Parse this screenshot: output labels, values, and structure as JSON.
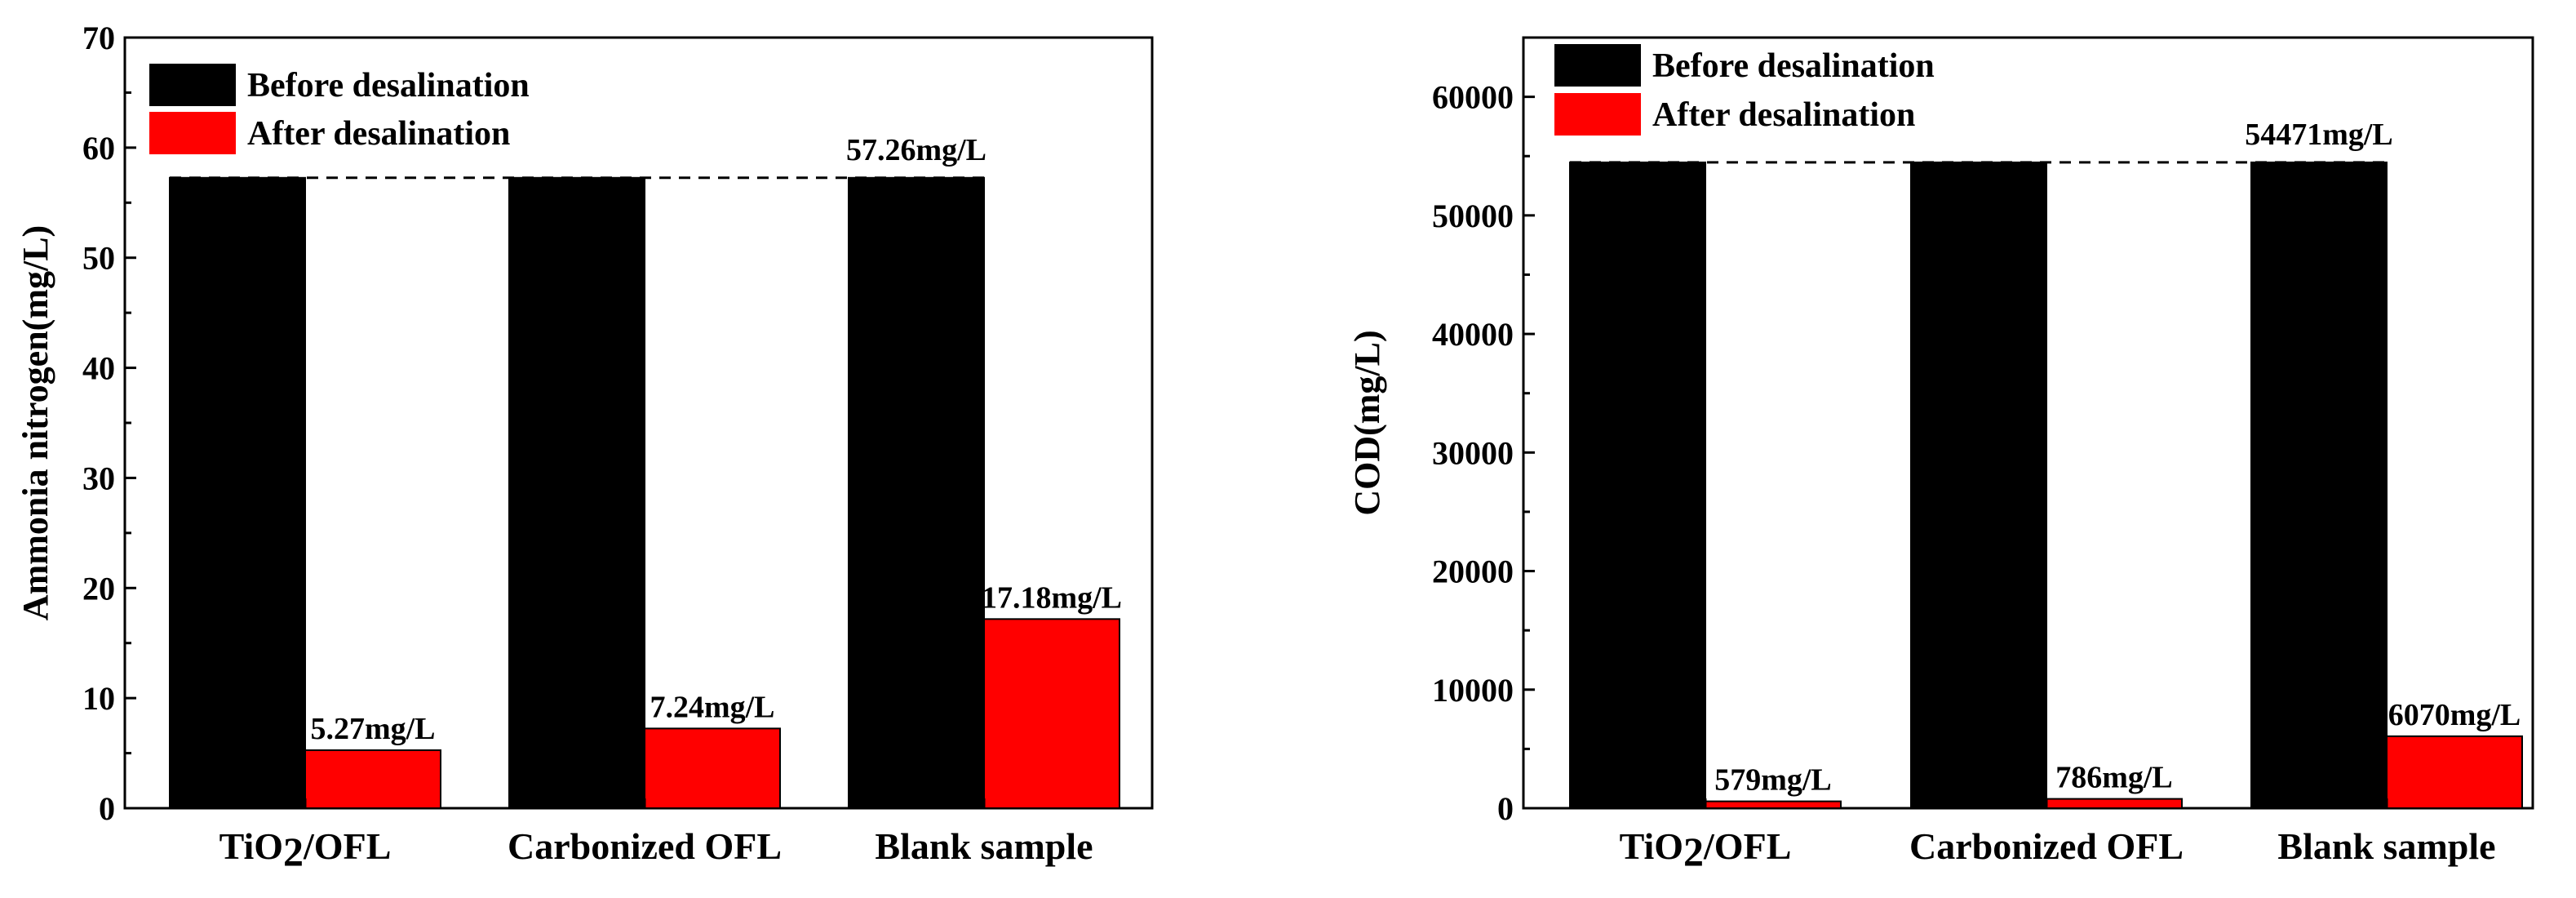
{
  "chart_data": [
    {
      "type": "bar",
      "title": "",
      "xlabel": "",
      "ylabel": "Ammonia nitrogen(mg/L)",
      "ylim": [
        0,
        70
      ],
      "yticks": [
        0,
        10,
        20,
        30,
        40,
        50,
        60,
        70
      ],
      "categories": [
        "TiO2/OFL",
        "Carbonized OFL",
        "Blank sample"
      ],
      "series": [
        {
          "name": "Before desalination",
          "color": "#000000",
          "values": [
            57.26,
            57.26,
            57.26
          ]
        },
        {
          "name": "After desalination",
          "color": "#ff0000",
          "values": [
            5.27,
            7.24,
            17.18
          ]
        }
      ],
      "legend_position": "top-left",
      "reference_line": {
        "value": 57.26,
        "style": "dashed"
      },
      "annotations": [
        "57.26mg/L",
        "5.27mg/L",
        "7.24mg/L",
        "17.18mg/L"
      ]
    },
    {
      "type": "bar",
      "title": "",
      "xlabel": "",
      "ylabel": "COD(mg/L)",
      "ylim": [
        0,
        65000
      ],
      "yticks": [
        0,
        10000,
        20000,
        30000,
        40000,
        50000,
        60000
      ],
      "categories": [
        "TiO2/OFL",
        "Carbonized OFL",
        "Blank sample"
      ],
      "series": [
        {
          "name": "Before desalination",
          "color": "#000000",
          "values": [
            54471,
            54471,
            54471
          ]
        },
        {
          "name": "After desalination",
          "color": "#ff0000",
          "values": [
            579,
            786,
            6070
          ]
        }
      ],
      "legend_position": "top-left",
      "reference_line": {
        "value": 54471,
        "style": "dashed"
      },
      "annotations": [
        "54471mg/L",
        "579mg/L",
        "786mg/L",
        "6070mg/L"
      ]
    }
  ]
}
